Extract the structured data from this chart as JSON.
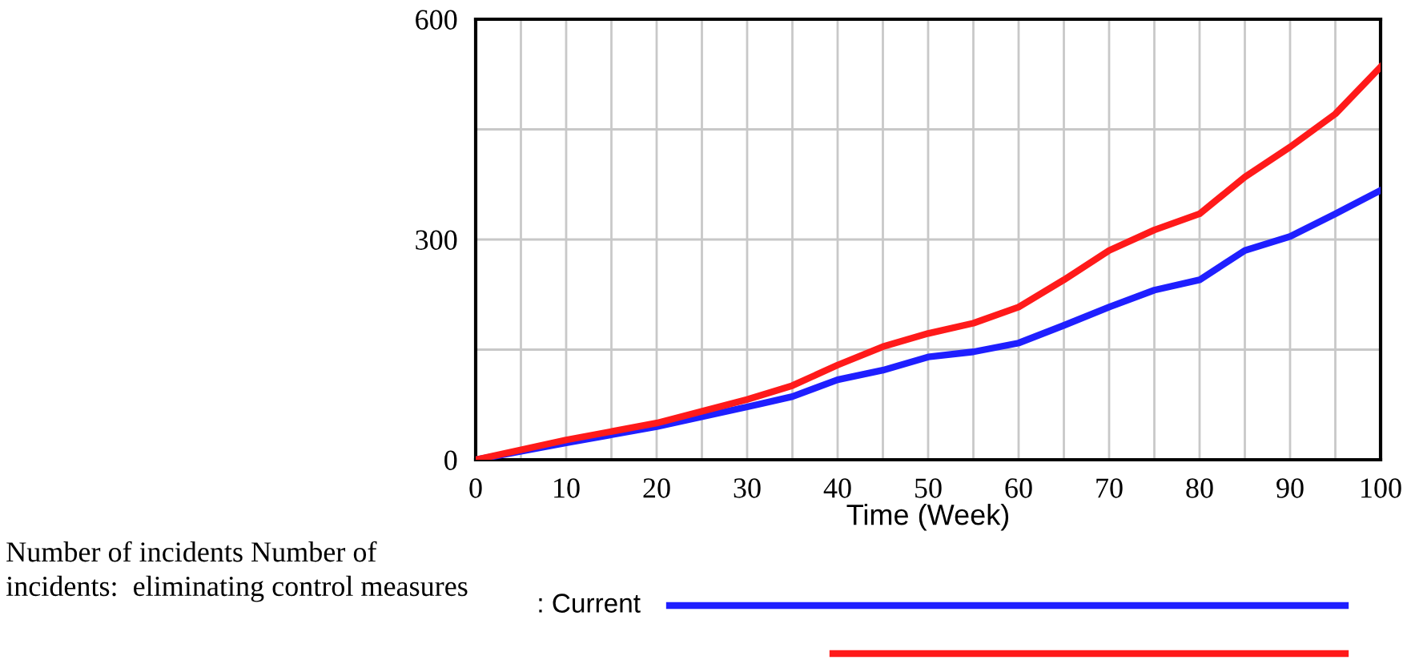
{
  "chart_data": {
    "type": "line",
    "xlabel": "Time (Week)",
    "x": [
      0,
      10,
      20,
      30,
      35,
      40,
      45,
      50,
      55,
      60,
      65,
      70,
      75,
      80,
      85,
      90,
      95,
      100
    ],
    "series": [
      {
        "name": ": Current",
        "color": "#1f1fff",
        "values": [
          0,
          23,
          45,
          72,
          86,
          109,
          122,
          140,
          147,
          159,
          183,
          208,
          231,
          245,
          285,
          304,
          335,
          367
        ]
      },
      {
        "color": "#ff1a1a",
        "values": [
          0,
          27,
          50,
          82,
          101,
          129,
          154,
          172,
          186,
          208,
          245,
          285,
          313,
          335,
          385,
          426,
          471,
          535
        ]
      }
    ],
    "xlim": [
      0,
      100
    ],
    "xticks": [
      0,
      {
        "value": 5,
        "label": null
      },
      10,
      {
        "value": 15,
        "label": null
      },
      20,
      {
        "value": 25,
        "label": null
      },
      30,
      {
        "value": 35,
        "label": null
      },
      40,
      {
        "value": 45,
        "label": null
      },
      50,
      {
        "value": 55,
        "label": null
      },
      60,
      {
        "value": 65,
        "label": null
      },
      70,
      {
        "value": 75,
        "label": null
      },
      80,
      {
        "value": 85,
        "label": null
      },
      90,
      {
        "value": 95,
        "label": null
      },
      100
    ],
    "ylim": [
      0,
      600
    ],
    "yticks": [
      0,
      {
        "value": 150,
        "label": null
      },
      300,
      {
        "value": 450,
        "label": null
      },
      600
    ],
    "grid": true,
    "legend": "bottom",
    "annotations": [
      "Number of incidents Number of incidents:  eliminating control measures"
    ]
  }
}
